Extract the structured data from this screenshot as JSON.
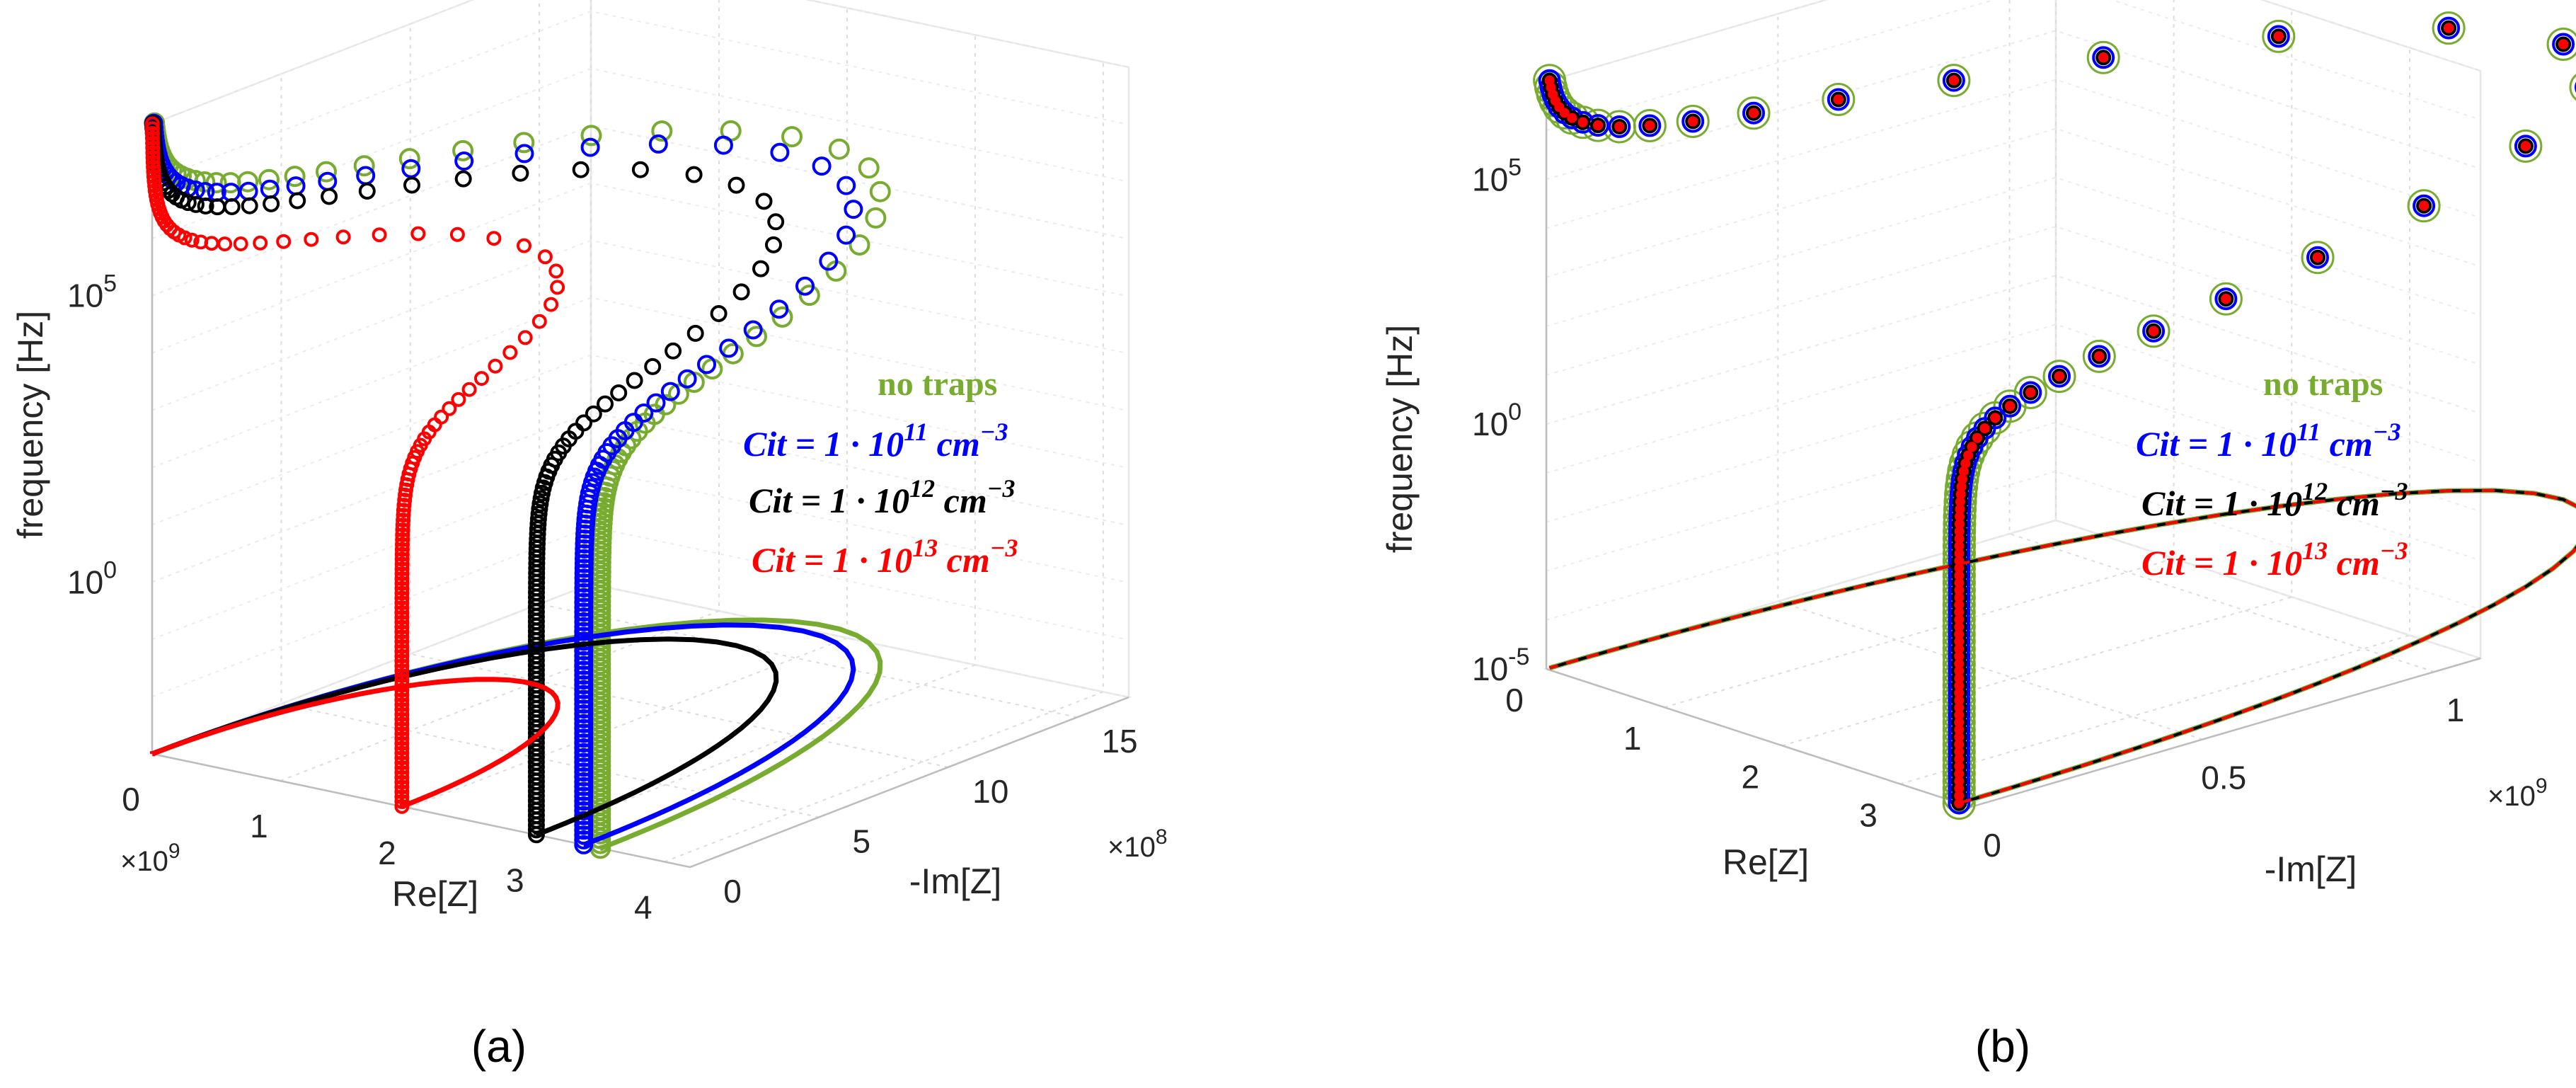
{
  "chart_data": [
    {
      "panel": "(a)",
      "type": "scatter3d",
      "xlabel": "Re[Z]",
      "ylabel": "-Im[Z]",
      "zlabel": "frequency [Hz]",
      "x_multiplier": "×10",
      "x_multiplier_exp": "9",
      "y_multiplier": "×10",
      "y_multiplier_exp": "8",
      "x_ticks": [
        "0",
        "1",
        "2",
        "3",
        "4"
      ],
      "y_ticks": [
        "0",
        "5",
        "10",
        "15"
      ],
      "z_ticks": [
        {
          "base": "10",
          "exp": "0"
        },
        {
          "base": "10",
          "exp": "5"
        }
      ],
      "xlim": [
        0,
        4200000000.0
      ],
      "ylim": [
        0,
        1700000000.0
      ],
      "zlim_log10": [
        -3,
        8
      ],
      "series": [
        {
          "name": "no traps",
          "color": "#77ac30",
          "R": 3500000000.0,
          "ring": 0.26
        },
        {
          "name": "Cit = 1 · 10^11 cm^-3",
          "color": "#0000ff",
          "R": 3370000000.0,
          "ring": 0.22
        },
        {
          "name": "Cit = 1 · 10^12 cm^-3",
          "color": "#000000",
          "R": 3000000000.0,
          "ring": 0.17
        },
        {
          "name": "Cit = 1 · 10^13 cm^-3",
          "color": "#ff0000",
          "R": 1950000000.0,
          "ring": 0.1
        }
      ],
      "legend": {
        "title": "no traps",
        "entries": [
          {
            "prefix": "Cit = 1 · 10",
            "exp": "11",
            "unit": " cm",
            "unit_exp": "−3",
            "color": "#0000ff"
          },
          {
            "prefix": "Cit = 1 · 10",
            "exp": "12",
            "unit": " cm",
            "unit_exp": "−3",
            "color": "#000000"
          },
          {
            "prefix": "Cit = 1 · 10",
            "exp": "13",
            "unit": " cm",
            "unit_exp": "−3",
            "color": "#ff0000"
          }
        ]
      }
    },
    {
      "panel": "(b)",
      "type": "scatter3d",
      "xlabel": "Re[Z]",
      "ylabel": "-Im[Z]",
      "zlabel": "frequency [Hz]",
      "y_multiplier": "×10",
      "y_multiplier_exp": "9",
      "x_ticks": [
        "0",
        "1",
        "2",
        "3"
      ],
      "y_ticks": [
        "0",
        "0.5",
        "1"
      ],
      "z_ticks": [
        {
          "base": "10",
          "exp": "-5"
        },
        {
          "base": "10",
          "exp": "0"
        },
        {
          "base": "10",
          "exp": "5"
        }
      ],
      "xlim": [
        0,
        3600000000.0
      ],
      "ylim": [
        0,
        1100000000.0
      ],
      "zlim_log10": [
        -5,
        7
      ],
      "series": [
        {
          "name": "no traps",
          "color": "#77ac30",
          "R": 3500000000.0
        },
        {
          "name": "Cit = 1 · 10^11 cm^-3",
          "color": "#0000ff",
          "R": 3500000000.0
        },
        {
          "name": "Cit = 1 · 10^12 cm^-3",
          "color": "#000000",
          "R": 3500000000.0
        },
        {
          "name": "Cit = 1 · 10^13 cm^-3",
          "color": "#ff0000",
          "R": 3500000000.0
        }
      ],
      "legend": {
        "title": "no traps",
        "entries": [
          {
            "prefix": "Cit = 1 · 10",
            "exp": "11",
            "unit": " cm",
            "unit_exp": "−3",
            "color": "#0000ff"
          },
          {
            "prefix": "Cit = 1 · 10",
            "exp": "12",
            "unit": " cm",
            "unit_exp": "−3",
            "color": "#000000"
          },
          {
            "prefix": "Cit = 1 · 10",
            "exp": "13",
            "unit": " cm",
            "unit_exp": "−3",
            "color": "#ff0000"
          }
        ]
      }
    }
  ],
  "colors": {
    "green": "#77ac30",
    "blue": "#0000ff",
    "black": "#000000",
    "red": "#ff0000"
  }
}
